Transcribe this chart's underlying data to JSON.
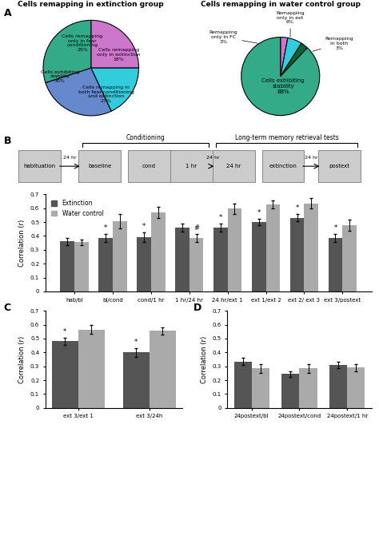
{
  "pie1_sizes": [
    25,
    18,
    27,
    30
  ],
  "pie1_colors": [
    "#cc77cc",
    "#33ccdd",
    "#6688cc",
    "#33aa88"
  ],
  "pie1_labels_inner": [
    "Cells remapping\nonly in fear\nconditioning\n25%",
    "Cells remapping\nonly in extinction\n18%",
    "Cells remapping in\nboth fear conditioning\nand extinction\n27%",
    "Cells exhibiting\nstability\n30%"
  ],
  "pie1_title": "Cells remapping in extinction group",
  "pie2_sizes": [
    3,
    6,
    3,
    88
  ],
  "pie2_colors": [
    "#cc77cc",
    "#33ccdd",
    "#006633",
    "#33aa88"
  ],
  "pie2_labels": [
    "Remapping\nonly in FC\n3%",
    "Remapping\nonly in ext\n6%",
    "Remapping\nin both\n3%",
    "Cells exhibiting\nstability\n88%"
  ],
  "pie2_title": "Cells remapping in water control group",
  "bar_categories": [
    "hab/bl",
    "bl/cond",
    "cond/1 hr",
    "1 hr/24 hr",
    "24 hr/ext 1",
    "ext 1/ext 2",
    "ext 2/ ext 3",
    "ext 3/postext"
  ],
  "bar_ext": [
    0.36,
    0.385,
    0.39,
    0.46,
    0.46,
    0.5,
    0.53,
    0.385
  ],
  "bar_ext_err": [
    0.025,
    0.03,
    0.035,
    0.03,
    0.03,
    0.025,
    0.025,
    0.03
  ],
  "bar_wc": [
    0.355,
    0.505,
    0.57,
    0.385,
    0.595,
    0.625,
    0.635,
    0.475
  ],
  "bar_wc_err": [
    0.02,
    0.05,
    0.04,
    0.03,
    0.035,
    0.03,
    0.035,
    0.04
  ],
  "bar_ext_star": [
    false,
    true,
    true,
    false,
    true,
    true,
    true,
    true
  ],
  "bar_wc_hash": [
    false,
    false,
    false,
    true,
    false,
    false,
    false,
    false
  ],
  "color_ext": "#555555",
  "color_wc": "#aaaaaa",
  "barC_ext": [
    0.48,
    0.4
  ],
  "barC_ext_err": [
    0.025,
    0.03
  ],
  "barC_wc": [
    0.565,
    0.555
  ],
  "barC_wc_err": [
    0.03,
    0.025
  ],
  "barC_labels": [
    "ext 3/ext 1",
    "ext 3/24h"
  ],
  "barC_ext_star": [
    true,
    true
  ],
  "barD_ext": [
    0.335,
    0.245,
    0.31
  ],
  "barD_ext_err": [
    0.025,
    0.02,
    0.025
  ],
  "barD_wc": [
    0.285,
    0.285,
    0.29
  ],
  "barD_wc_err": [
    0.03,
    0.03,
    0.025
  ],
  "barD_labels": [
    "24postext/bl",
    "24postext/cond",
    "24postext/1 hr"
  ]
}
